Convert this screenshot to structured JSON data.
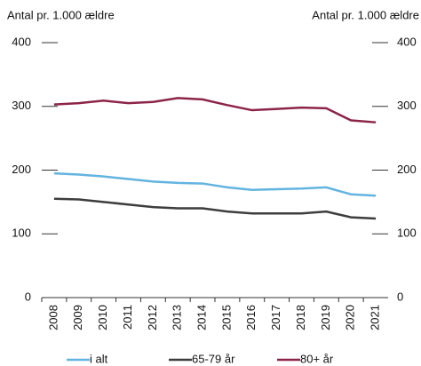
{
  "chart_data": {
    "type": "line",
    "ylabel": "Antal pr. 1.000 ældre",
    "y2label": "Antal pr. 1.000 ældre",
    "categories": [
      "2008",
      "2009",
      "2010",
      "2011",
      "2012",
      "2013",
      "2014",
      "2015",
      "2016",
      "2017",
      "2018",
      "2019",
      "2020",
      "2021"
    ],
    "series": [
      {
        "name": "i alt",
        "color": "#62b4e0",
        "values": [
          195,
          193,
          190,
          186,
          182,
          180,
          179,
          173,
          169,
          170,
          171,
          173,
          162,
          160
        ]
      },
      {
        "name": "65-79 år",
        "color": "#3d3d3d",
        "values": [
          155,
          154,
          150,
          146,
          142,
          140,
          140,
          135,
          132,
          132,
          132,
          135,
          126,
          124
        ]
      },
      {
        "name": "80+ år",
        "color": "#8c2449",
        "values": [
          303,
          305,
          309,
          305,
          307,
          313,
          311,
          302,
          294,
          296,
          298,
          297,
          278,
          275
        ]
      }
    ],
    "ylim": [
      0,
      400
    ],
    "yticks": [
      0,
      100,
      200,
      300,
      400
    ],
    "y2lim": [
      0,
      400
    ],
    "y2ticks": [
      0,
      100,
      200,
      300,
      400
    ],
    "grid": false,
    "legend": "bottom"
  }
}
